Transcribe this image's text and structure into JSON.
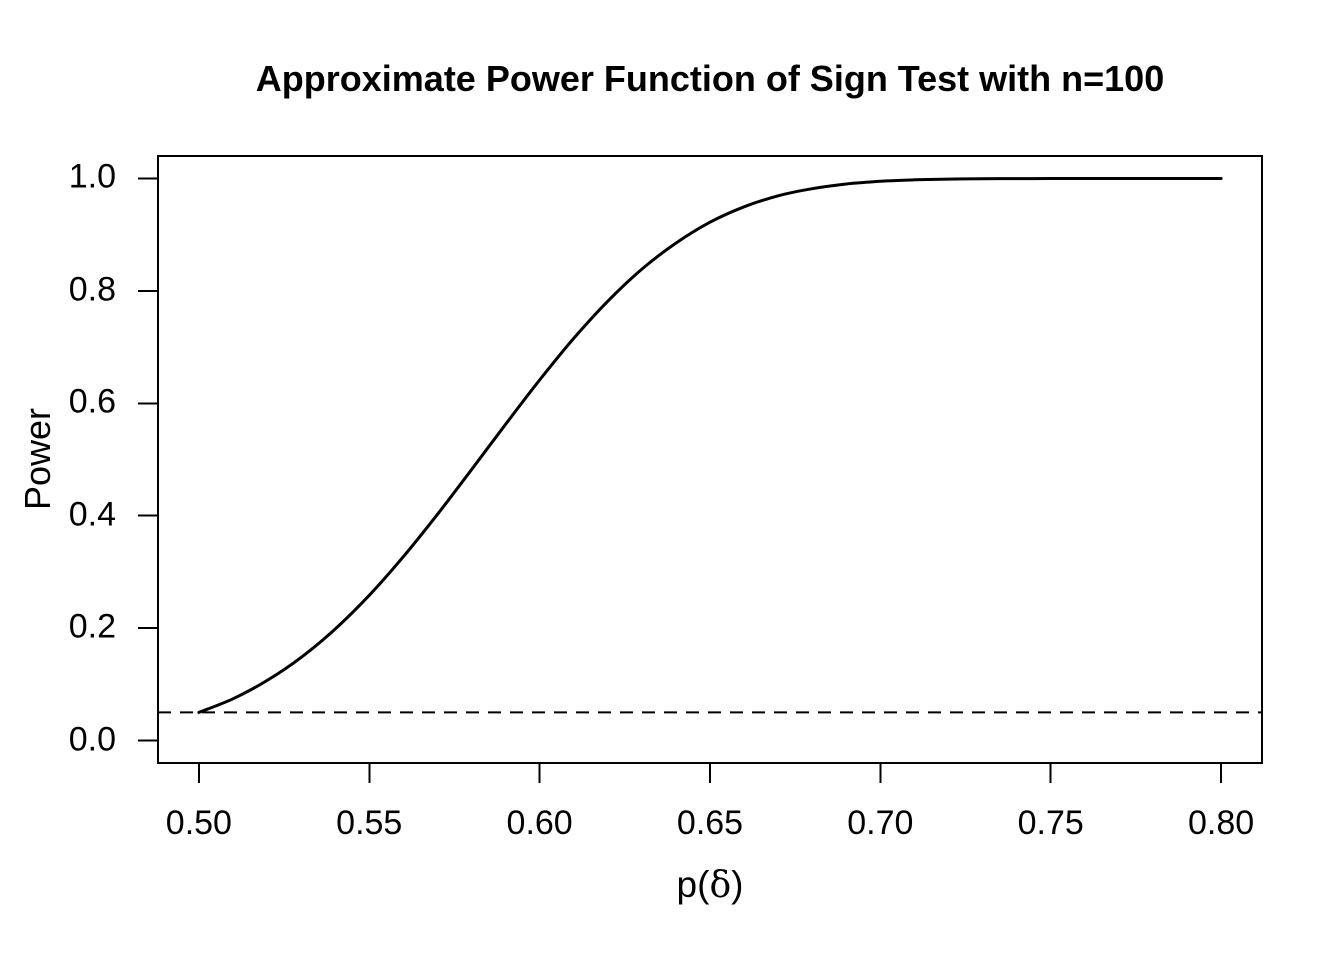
{
  "chart_data": {
    "type": "line",
    "title": "Approximate Power Function of Sign Test with n=100",
    "xlabel": "p(δ)",
    "xlabel_parts": {
      "pre": "p(",
      "sym": "δ",
      "post": ")"
    },
    "ylabel": "Power",
    "x_tick_labels": [
      "0.50",
      "0.55",
      "0.60",
      "0.65",
      "0.70",
      "0.75",
      "0.80"
    ],
    "x_tick_values": [
      0.5,
      0.55,
      0.6,
      0.65,
      0.7,
      0.75,
      0.8
    ],
    "y_tick_labels": [
      "0.0",
      "0.2",
      "0.4",
      "0.6",
      "0.8",
      "1.0"
    ],
    "y_tick_values": [
      0.0,
      0.2,
      0.4,
      0.6,
      0.8,
      1.0
    ],
    "xlim": [
      0.488,
      0.812
    ],
    "ylim": [
      -0.04,
      1.04
    ],
    "grid": false,
    "legend": null,
    "background_color": "#ffffff",
    "foreground_color": "#000000",
    "series": [
      {
        "name": "approximate-power-curve",
        "style": "solid",
        "color": "#000000",
        "line_width": 3,
        "x": [
          0.5,
          0.51,
          0.52,
          0.53,
          0.54,
          0.55,
          0.56,
          0.57,
          0.58,
          0.59,
          0.6,
          0.61,
          0.62,
          0.63,
          0.64,
          0.65,
          0.66,
          0.67,
          0.68,
          0.69,
          0.7,
          0.71,
          0.72,
          0.73,
          0.74,
          0.75,
          0.76,
          0.77,
          0.78,
          0.79,
          0.8
        ],
        "y": [
          0.05,
          0.0742,
          0.1068,
          0.1478,
          0.1984,
          0.2584,
          0.3271,
          0.4023,
          0.4818,
          0.5626,
          0.6415,
          0.7154,
          0.7816,
          0.8387,
          0.885,
          0.9222,
          0.9496,
          0.9691,
          0.9819,
          0.9901,
          0.9949,
          0.9976,
          0.9989,
          0.9996,
          0.9998,
          0.9999,
          1.0,
          1.0,
          1.0,
          1.0,
          1.0
        ]
      }
    ],
    "reference_lines": [
      {
        "name": "significance-level-line",
        "y": 0.05,
        "style": "dashed",
        "color": "#000000",
        "line_width": 2
      }
    ]
  }
}
